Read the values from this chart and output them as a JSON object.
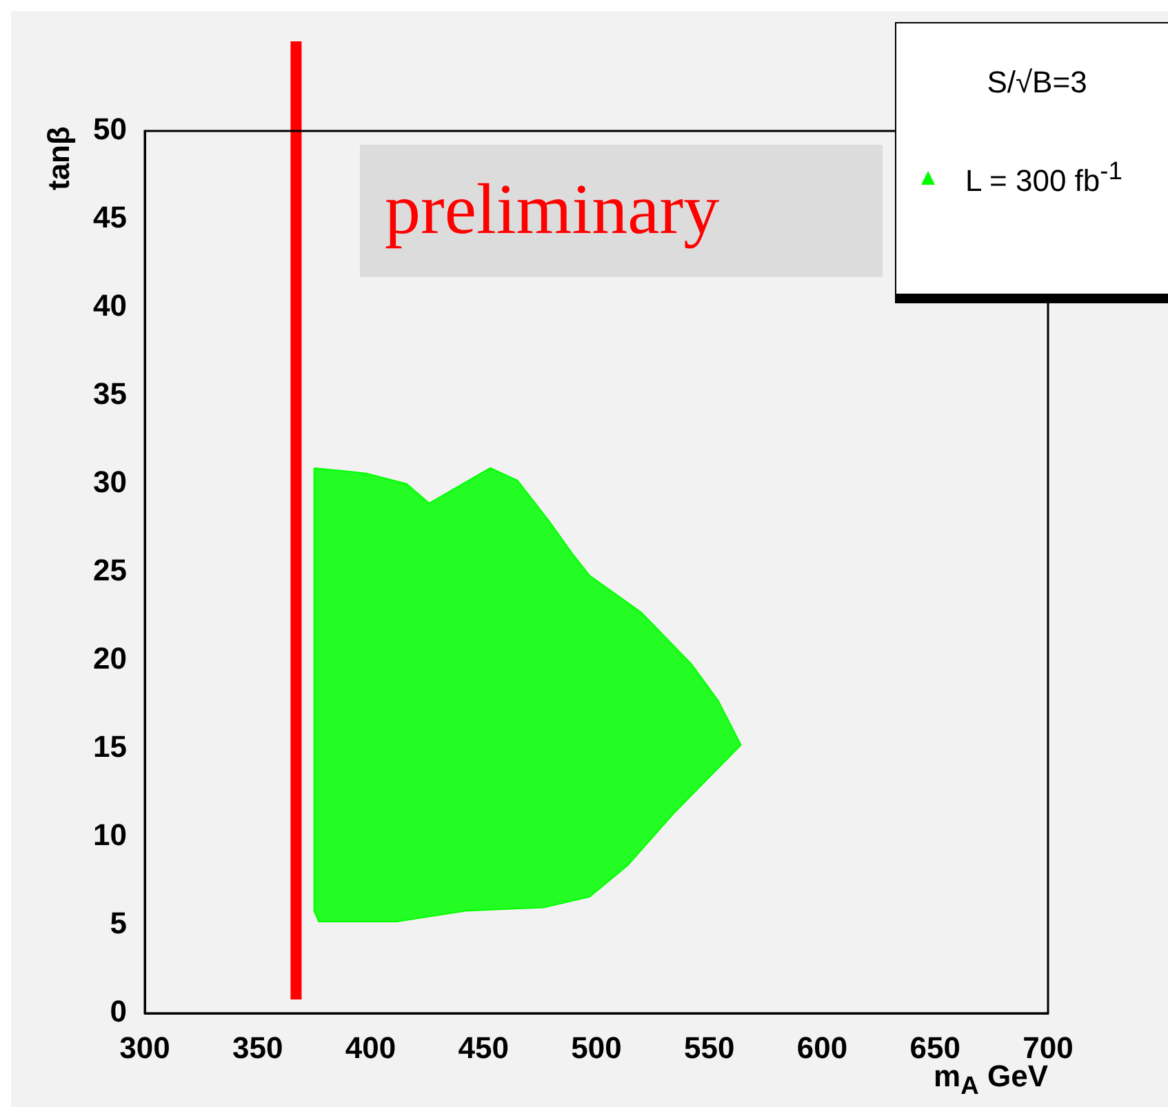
{
  "chart_data": {
    "type": "area",
    "xlabel": "m$_{A}$ GeV",
    "ylabel": "tanβ",
    "legend_title": "S/√B=3",
    "legend": "top right",
    "grid": false,
    "xlim": [
      300,
      700
    ],
    "xticks": [
      300,
      350,
      400,
      450,
      500,
      550,
      600,
      650,
      700
    ],
    "ylim": [
      0,
      50
    ],
    "yticks": [
      0,
      5,
      10,
      15,
      20,
      25,
      30,
      35,
      40,
      45,
      50
    ],
    "series": [
      {
        "name": "L = 300 fb$^{-1}$",
        "color": "#00ff00",
        "x": [
          375,
          398,
          416,
          426,
          434,
          453,
          465,
          479,
          489,
          497,
          520,
          542,
          554,
          564,
          534,
          514,
          497,
          477,
          442,
          412,
          377,
          375,
          375
        ],
        "values": [
          30.9,
          30.6,
          30,
          28.9,
          29.5,
          30.9,
          30.2,
          27.9,
          26.1,
          24.8,
          22.7,
          19.8,
          17.7,
          15.2,
          11.3,
          8.4,
          6.6,
          6,
          5.8,
          5.2,
          5.2,
          5.8,
          30.9
        ]
      }
    ],
    "ref_lines": [
      {
        "axis": "x",
        "value": 367,
        "color": "#ff0000"
      }
    ],
    "annotations": [
      "preliminary"
    ]
  }
}
